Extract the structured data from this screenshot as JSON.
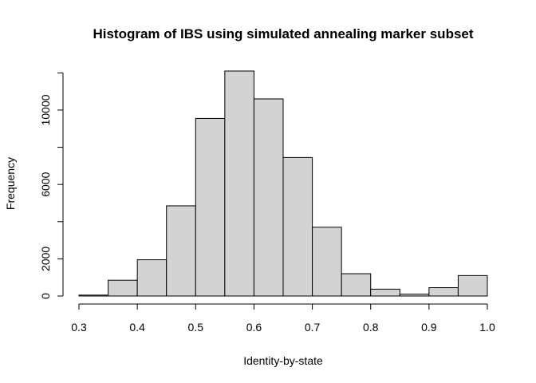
{
  "chart_data": {
    "type": "bar",
    "title": "Histogram of IBS using simulated annealing marker subset",
    "xlabel": "Identity-by-state",
    "ylabel": "Frequency",
    "bin_width": 0.05,
    "bins": [
      {
        "start": 0.3,
        "end": 0.35,
        "value": 50
      },
      {
        "start": 0.35,
        "end": 0.4,
        "value": 850
      },
      {
        "start": 0.4,
        "end": 0.45,
        "value": 1950
      },
      {
        "start": 0.45,
        "end": 0.5,
        "value": 4850
      },
      {
        "start": 0.5,
        "end": 0.55,
        "value": 9550
      },
      {
        "start": 0.55,
        "end": 0.6,
        "value": 12100
      },
      {
        "start": 0.6,
        "end": 0.65,
        "value": 10600
      },
      {
        "start": 0.65,
        "end": 0.7,
        "value": 7450
      },
      {
        "start": 0.7,
        "end": 0.75,
        "value": 3700
      },
      {
        "start": 0.75,
        "end": 0.8,
        "value": 1200
      },
      {
        "start": 0.8,
        "end": 0.85,
        "value": 370
      },
      {
        "start": 0.85,
        "end": 0.9,
        "value": 100
      },
      {
        "start": 0.9,
        "end": 0.95,
        "value": 450
      },
      {
        "start": 0.95,
        "end": 1.0,
        "value": 1100
      }
    ],
    "xlim": [
      0.3,
      1.0
    ],
    "ylim": [
      0,
      12100
    ],
    "x_ticks": [
      0.3,
      0.4,
      0.5,
      0.6,
      0.7,
      0.8,
      0.9,
      1.0
    ],
    "x_tick_labels": [
      "0.3",
      "0.4",
      "0.5",
      "0.6",
      "0.7",
      "0.8",
      "0.9",
      "1.0"
    ],
    "y_ticks": [
      0,
      2000,
      6000,
      10000
    ],
    "y_tick_labels": [
      "0",
      "2000",
      "6000",
      "10000"
    ],
    "y_axis_max": 12000,
    "bar_color": "#d3d3d3",
    "grid": false,
    "legend": "none"
  }
}
